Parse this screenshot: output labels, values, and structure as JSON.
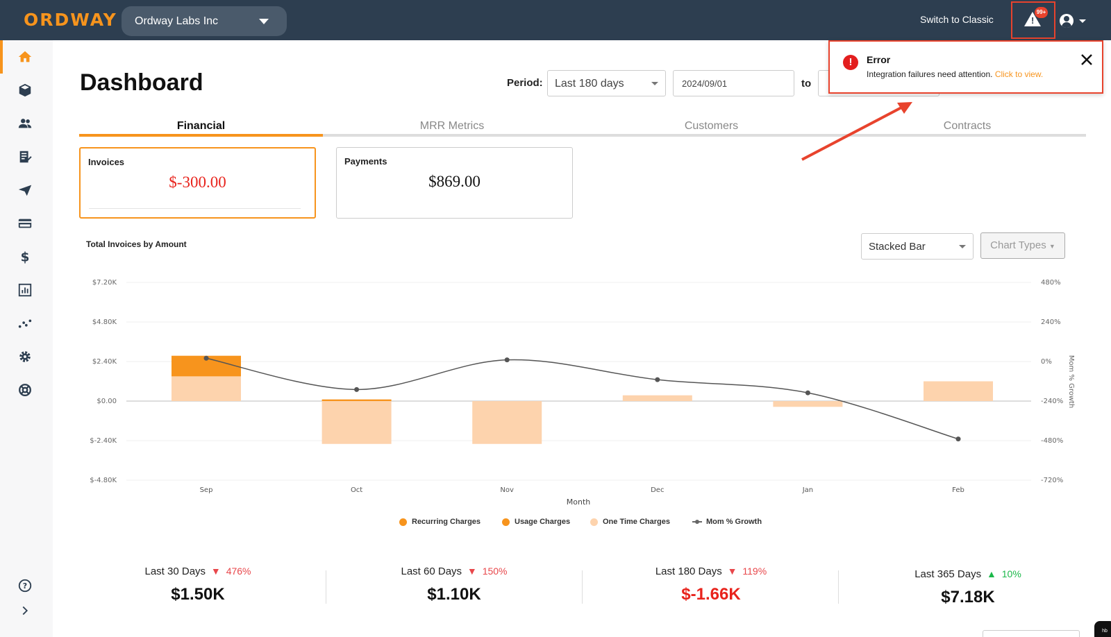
{
  "topbar": {
    "logo": "ORDWAY",
    "org_name": "Ordway Labs Inc",
    "switch_classic": "Switch to Classic",
    "alert_badge": "99+"
  },
  "sidebar": {
    "items": [
      {
        "icon": "home-icon",
        "active": true
      },
      {
        "icon": "box-icon"
      },
      {
        "icon": "users-icon"
      },
      {
        "icon": "invoice-icon"
      },
      {
        "icon": "send-icon"
      },
      {
        "icon": "credit-card-icon"
      },
      {
        "icon": "dollar-icon"
      },
      {
        "icon": "report-icon"
      },
      {
        "icon": "analytics-icon"
      },
      {
        "icon": "gear-icon"
      },
      {
        "icon": "support-icon"
      }
    ],
    "bottom": [
      {
        "icon": "help-icon"
      },
      {
        "icon": "expand-icon"
      }
    ]
  },
  "header": {
    "title": "Dashboard",
    "period_label": "Period:",
    "period_value": "Last 180 days",
    "date_from": "2024/09/01",
    "to_label": "to"
  },
  "tabs": [
    {
      "label": "Financial",
      "active": true
    },
    {
      "label": "MRR Metrics"
    },
    {
      "label": "Customers"
    },
    {
      "label": "Contracts"
    }
  ],
  "cards": {
    "invoices": {
      "label": "Invoices",
      "value": "$-300.00"
    },
    "payments": {
      "label": "Payments",
      "value": "$869.00"
    }
  },
  "chart_controls": {
    "title": "Total Invoices by Amount",
    "chart_type": "Stacked Bar",
    "chart_types_button": "Chart Types"
  },
  "colors": {
    "accent": "#f7941d",
    "recurring": "#f7941d",
    "usage": "#f7941d",
    "one_time": "#fdd3ad",
    "growth_line": "#555555",
    "error": "#e8432d"
  },
  "chart_data": {
    "type": "bar",
    "stacked": true,
    "title": "Total Invoices by Amount",
    "xlabel": "Month",
    "ylabel": "",
    "y2label": "Mom % Growth",
    "categories": [
      "Sep",
      "Oct",
      "Nov",
      "Dec",
      "Jan",
      "Feb"
    ],
    "ylim": [
      -4800,
      7200
    ],
    "y_ticks": [
      -4800,
      -2400,
      0,
      2400,
      4800,
      7200
    ],
    "y_tick_labels": [
      "$-4.80K",
      "$-2.40K",
      "$0.00",
      "$2.40K",
      "$4.80K",
      "$7.20K"
    ],
    "y2lim": [
      -720,
      480
    ],
    "y2_ticks": [
      -720,
      -480,
      -240,
      0,
      240,
      480
    ],
    "y2_tick_labels": [
      "-720%",
      "-480%",
      "-240%",
      "0%",
      "240%",
      "480%"
    ],
    "grid": true,
    "legend_position": "bottom",
    "series": [
      {
        "name": "Recurring Charges",
        "values": [
          0,
          0,
          0,
          0,
          0,
          0
        ]
      },
      {
        "name": "Usage Charges",
        "values": [
          1250,
          100,
          0,
          0,
          0,
          0
        ]
      },
      {
        "name": "One Time Charges",
        "values": [
          1500,
          -2600,
          -2600,
          350,
          -350,
          1200
        ]
      },
      {
        "name": "Mom % Growth",
        "axis": "right",
        "type": "line",
        "values": [
          20,
          -170,
          10,
          -110,
          -190,
          -470
        ]
      }
    ]
  },
  "summary": [
    {
      "label": "Last 30 Days",
      "change": "476%",
      "direction": "down",
      "value": "$1.50K"
    },
    {
      "label": "Last 60 Days",
      "change": "150%",
      "direction": "down",
      "value": "$1.10K"
    },
    {
      "label": "Last 180 Days",
      "change": "119%",
      "direction": "down",
      "value": "$-1.66K",
      "negative": true
    },
    {
      "label": "Last 365 Days",
      "change": "10%",
      "direction": "up",
      "value": "$7.18K"
    }
  ],
  "toast": {
    "title": "Error",
    "message": "Integration failures need attention.",
    "link": "Click to view."
  },
  "corner_badge": "hb"
}
